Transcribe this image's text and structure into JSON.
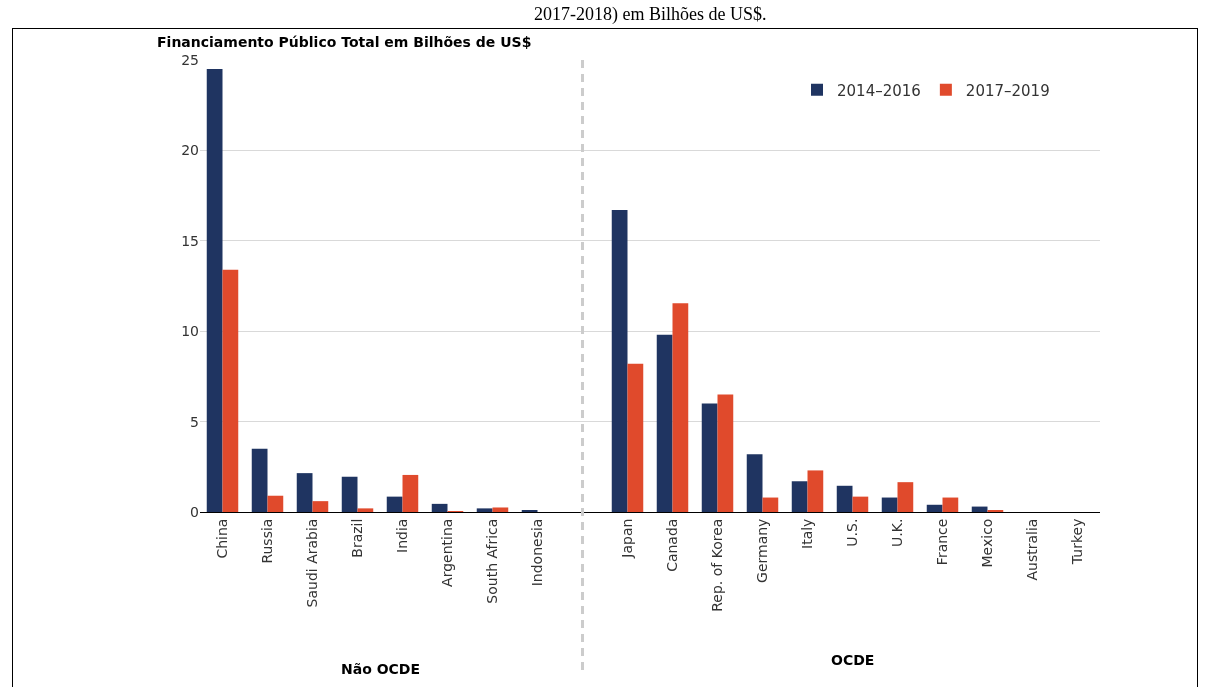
{
  "chart_data": {
    "type": "bar",
    "title": "Financiamento Público Total em Bilhões de US$",
    "categories": [
      "China",
      "Russia",
      "Saudi Arabia",
      "Brazil",
      "India",
      "Argentina",
      "South Africa",
      "Indonesia",
      null,
      "Japan",
      "Canada",
      "Rep. of Korea",
      "Germany",
      "Italy",
      "U.S.",
      "U.K.",
      "France",
      "Mexico",
      "Australia",
      "Turkey"
    ],
    "series": [
      {
        "name": "2014–2016",
        "color": "#1f3461",
        "values": [
          24.5,
          3.5,
          2.15,
          1.95,
          0.85,
          0.45,
          0.2,
          0.07,
          null,
          16.7,
          9.8,
          6.0,
          3.2,
          1.7,
          1.45,
          0.8,
          0.4,
          0.3,
          0,
          0
        ]
      },
      {
        "name": "2017–2019",
        "color": "#e04a2c",
        "values": [
          13.4,
          0.9,
          0.6,
          0.2,
          2.05,
          0.02,
          0.25,
          0,
          null,
          8.2,
          11.55,
          6.5,
          0.8,
          2.3,
          0.85,
          1.65,
          0.8,
          0.1,
          0,
          0
        ]
      }
    ],
    "ylim": [
      0,
      25
    ],
    "yticks": [
      0,
      5,
      10,
      15,
      20,
      25
    ],
    "grid": "y",
    "legend": "top right",
    "annotations": [
      "Não OCDE",
      "OCDE",
      "2017-2018) em Bilhões de US$."
    ]
  }
}
